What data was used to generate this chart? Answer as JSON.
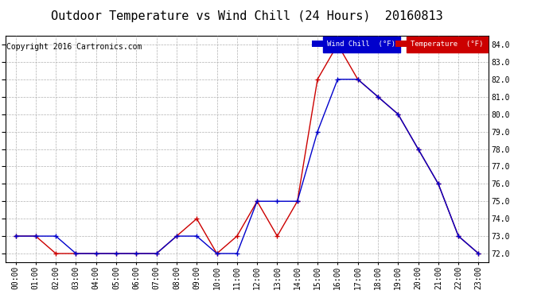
{
  "title": "Outdoor Temperature vs Wind Chill (24 Hours)  20160813",
  "copyright": "Copyright 2016 Cartronics.com",
  "hours": [
    "00:00",
    "01:00",
    "02:00",
    "03:00",
    "04:00",
    "05:00",
    "06:00",
    "07:00",
    "08:00",
    "09:00",
    "10:00",
    "11:00",
    "12:00",
    "13:00",
    "14:00",
    "15:00",
    "16:00",
    "17:00",
    "18:00",
    "19:00",
    "20:00",
    "21:00",
    "22:00",
    "23:00"
  ],
  "temperature": [
    73.0,
    73.0,
    72.0,
    72.0,
    72.0,
    72.0,
    72.0,
    72.0,
    73.0,
    74.0,
    72.0,
    73.0,
    75.0,
    73.0,
    75.0,
    82.0,
    84.0,
    82.0,
    81.0,
    80.0,
    78.0,
    76.0,
    73.0,
    72.0
  ],
  "wind_chill": [
    73.0,
    73.0,
    73.0,
    72.0,
    72.0,
    72.0,
    72.0,
    72.0,
    73.0,
    73.0,
    72.0,
    72.0,
    75.0,
    75.0,
    75.0,
    79.0,
    82.0,
    82.0,
    81.0,
    80.0,
    78.0,
    76.0,
    73.0,
    72.0
  ],
  "ylim": [
    71.5,
    84.5
  ],
  "yticks": [
    72.0,
    73.0,
    74.0,
    75.0,
    76.0,
    77.0,
    78.0,
    79.0,
    80.0,
    81.0,
    82.0,
    83.0,
    84.0
  ],
  "temp_color": "#cc0000",
  "wind_color": "#0000cc",
  "bg_color": "#ffffff",
  "plot_bg": "#ffffff",
  "grid_color": "#b0b0b0",
  "title_fontsize": 11,
  "copyright_fontsize": 7,
  "tick_fontsize": 7,
  "legend_wind_label": "Wind Chill  (°F)",
  "legend_temp_label": "Temperature  (°F)"
}
